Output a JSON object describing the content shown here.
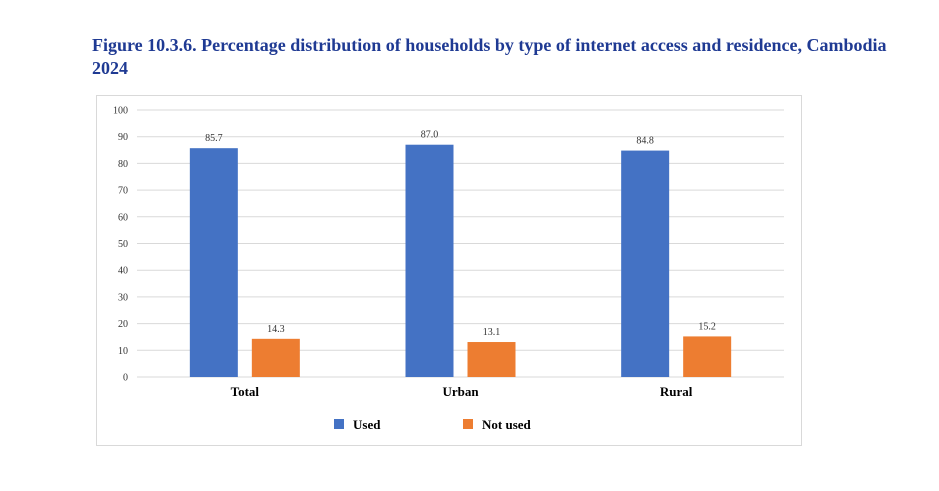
{
  "figure": {
    "title": "Figure 10.3.6. Percentage distribution of households by type of internet access and residence, Cambodia 2024"
  },
  "chart_data": {
    "type": "bar",
    "categories": [
      "Total",
      "Urban",
      "Rural"
    ],
    "series": [
      {
        "name": "Used",
        "color": "#4472c4",
        "values": [
          85.7,
          87.0,
          84.8
        ],
        "labels": [
          "85.7",
          "87.0",
          "84.8"
        ]
      },
      {
        "name": "Not used",
        "color": "#ed7d31",
        "values": [
          14.3,
          13.1,
          15.2
        ],
        "labels": [
          "14.3",
          "13.1",
          "15.2"
        ]
      }
    ],
    "ylim": [
      0,
      100
    ],
    "yticks": [
      0,
      10,
      20,
      30,
      40,
      50,
      60,
      70,
      80,
      90,
      100
    ],
    "grid": true,
    "legend_position": "bottom"
  }
}
